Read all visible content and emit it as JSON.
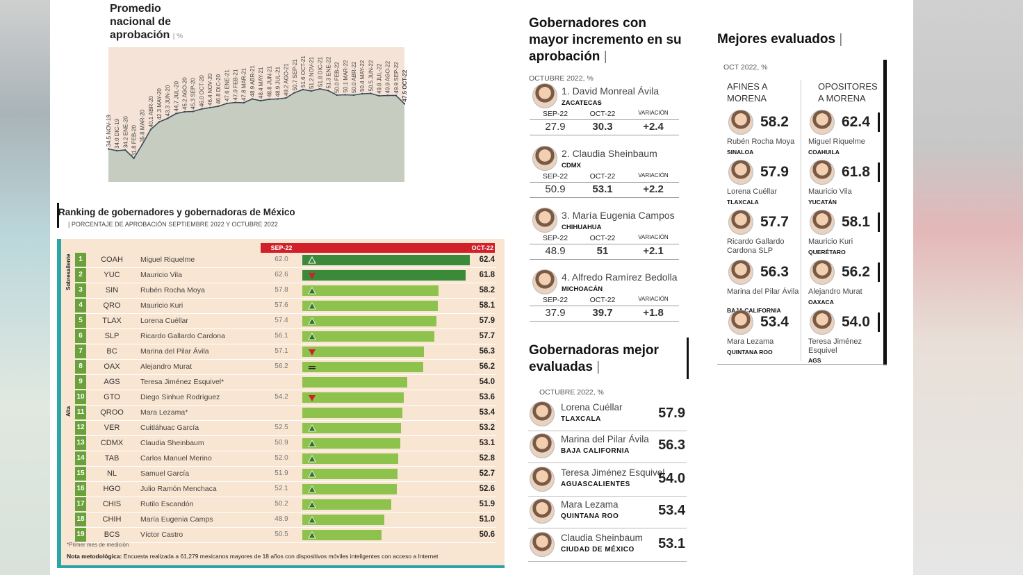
{
  "promedio": {
    "title_l1": "Promedio",
    "title_l2": "nacional de",
    "title_l3": "aprobación",
    "unit": "%"
  },
  "chart_data": [
    {
      "type": "area",
      "title": "Promedio nacional de aprobación",
      "unit": "%",
      "points": [
        {
          "label": "34.5 NOV-19",
          "v": 34.5
        },
        {
          "label": "34.0 DIC-19",
          "v": 34.0
        },
        {
          "label": "34.2 ENE-20",
          "v": 34.2
        },
        {
          "label": "31.8 FEB-20",
          "v": 31.8
        },
        {
          "label": "35.8 MAR-20",
          "v": 35.8
        },
        {
          "label": "40.1 ABR-20",
          "v": 40.1
        },
        {
          "label": "42.3 MAY-20",
          "v": 42.3
        },
        {
          "label": "43.3 JUN-20",
          "v": 43.3
        },
        {
          "label": "44.7 JUL-20",
          "v": 44.7
        },
        {
          "label": "45.2 AGO-20",
          "v": 45.2
        },
        {
          "label": "45.3 SEP-20",
          "v": 45.3
        },
        {
          "label": "46.0 OCT-20",
          "v": 46.0
        },
        {
          "label": "46.4 NOV-20",
          "v": 46.4
        },
        {
          "label": "46.8 DIC-20",
          "v": 46.8
        },
        {
          "label": "47.6 ENE-21",
          "v": 47.6
        },
        {
          "label": "47.9 FEB-21",
          "v": 47.9
        },
        {
          "label": "47.8 MAR-21",
          "v": 47.8
        },
        {
          "label": "48.9 ABR-21",
          "v": 48.9
        },
        {
          "label": "48.4 MAY-21",
          "v": 48.4
        },
        {
          "label": "48.8 JUN-21",
          "v": 48.8
        },
        {
          "label": "48.9 JUL-21",
          "v": 48.9
        },
        {
          "label": "49.2 AGO-21",
          "v": 49.2
        },
        {
          "label": "50.7 SEP-21",
          "v": 50.7
        },
        {
          "label": "51.6 OCT-21",
          "v": 51.6
        },
        {
          "label": "51.2 NOV-21",
          "v": 51.2
        },
        {
          "label": "51.8 DIC-21",
          "v": 51.8
        },
        {
          "label": "51.3 ENE-22",
          "v": 51.3
        },
        {
          "label": "50.0 FEB-22",
          "v": 50.0
        },
        {
          "label": "50.1 MAR-22",
          "v": 50.1
        },
        {
          "label": "50.0 ABR-22",
          "v": 50.0
        },
        {
          "label": "50.4 MAY-22",
          "v": 50.4
        },
        {
          "label": "50.5 JUN-22",
          "v": 50.5
        },
        {
          "label": "49.8 JUL-22",
          "v": 49.8
        },
        {
          "label": "49.9 AGO-22",
          "v": 49.9
        },
        {
          "label": "49.9 SEP-22",
          "v": 49.9
        },
        {
          "label": "47.5 OCT-22",
          "v": 47.5
        }
      ]
    },
    {
      "type": "bar",
      "title": "Ranking de gobernadores y gobernadoras de México",
      "subtitle": "PORCENTAJE DE APROBACIÓN SEPTIEMBRE 2022 Y OCTUBRE 2022",
      "col_sep": "SEP-22",
      "col_oct": "OCT-22",
      "group_top": "Sobresaliente",
      "group_bottom": "Alta",
      "rows": [
        {
          "rank": "1",
          "code": "COAH",
          "name": "Miguel Riquelme",
          "sep": "62.0",
          "oct": 62.4,
          "arrow": "up",
          "tier": "top"
        },
        {
          "rank": "2",
          "code": "YUC",
          "name": "Mauricio Vila",
          "sep": "62.6",
          "oct": 61.8,
          "arrow": "down",
          "tier": "top"
        },
        {
          "rank": "3",
          "code": "SIN",
          "name": "Rubén Rocha Moya",
          "sep": "57.8",
          "oct": 58.2,
          "arrow": "up",
          "tier": "alta"
        },
        {
          "rank": "4",
          "code": "QRO",
          "name": "Mauricio Kuri",
          "sep": "57.6",
          "oct": 58.1,
          "arrow": "up",
          "tier": "alta"
        },
        {
          "rank": "5",
          "code": "TLAX",
          "name": "Lorena Cuéllar",
          "sep": "57.4",
          "oct": 57.9,
          "arrow": "up",
          "tier": "alta"
        },
        {
          "rank": "6",
          "code": "SLP",
          "name": "Ricardo Gallardo Cardona",
          "sep": "56.1",
          "oct": 57.7,
          "arrow": "up",
          "tier": "alta"
        },
        {
          "rank": "7",
          "code": "BC",
          "name": "Marina del Pilar Ávila",
          "sep": "57.1",
          "oct": 56.3,
          "arrow": "down",
          "tier": "alta"
        },
        {
          "rank": "8",
          "code": "OAX",
          "name": "Alejandro Murat",
          "sep": "56.2",
          "oct": 56.2,
          "arrow": "equal",
          "tier": "alta"
        },
        {
          "rank": "9",
          "code": "AGS",
          "name": "Teresa Jiménez Esquivel*",
          "sep": "",
          "oct": 54.0,
          "arrow": "none",
          "tier": "alta"
        },
        {
          "rank": "10",
          "code": "GTO",
          "name": "Diego Sinhue Rodríguez",
          "sep": "54.2",
          "oct": 53.6,
          "arrow": "down",
          "tier": "alta"
        },
        {
          "rank": "11",
          "code": "QROO",
          "name": "Mara Lezama*",
          "sep": "",
          "oct": 53.4,
          "arrow": "none",
          "tier": "alta"
        },
        {
          "rank": "12",
          "code": "VER",
          "name": "Cuitláhuac García",
          "sep": "52.5",
          "oct": 53.2,
          "arrow": "up",
          "tier": "alta"
        },
        {
          "rank": "13",
          "code": "CDMX",
          "name": "Claudia Sheinbaum",
          "sep": "50.9",
          "oct": 53.1,
          "arrow": "up",
          "tier": "alta"
        },
        {
          "rank": "14",
          "code": "TAB",
          "name": "Carlos Manuel Merino",
          "sep": "52.0",
          "oct": 52.8,
          "arrow": "up",
          "tier": "alta"
        },
        {
          "rank": "15",
          "code": "NL",
          "name": "Samuel García",
          "sep": "51.9",
          "oct": 52.7,
          "arrow": "up",
          "tier": "alta"
        },
        {
          "rank": "16",
          "code": "HGO",
          "name": "Julio Ramón Menchaca",
          "sep": "52.1",
          "oct": 52.6,
          "arrow": "up",
          "tier": "alta"
        },
        {
          "rank": "17",
          "code": "CHIS",
          "name": "Rutilo Escandón",
          "sep": "50.2",
          "oct": 51.9,
          "arrow": "up",
          "tier": "alta"
        },
        {
          "rank": "18",
          "code": "CHIH",
          "name": "María Eugenia Camps",
          "sep": "48.9",
          "oct": 51.0,
          "arrow": "up",
          "tier": "alta"
        },
        {
          "rank": "19",
          "code": "BCS",
          "name": "Víctor Castro",
          "sep": "50.5",
          "oct": 50.6,
          "arrow": "up",
          "tier": "alta"
        }
      ],
      "colors": {
        "top": "#3a8a3a",
        "alta": "#8dc24c"
      }
    }
  ],
  "ranking_text": {
    "title": "Ranking de gobernadores y gobernadoras de México",
    "subtitle": "PORCENTAJE DE APROBACIÓN SEPTIEMBRE 2022 Y OCTUBRE 2022",
    "sep": "SEP-22",
    "oct": "OCT-22",
    "group_top": "Sobresaliente",
    "group_bottom": "Alta",
    "foot_note": "*Primer mes de medición",
    "method_label": "Nota metodológica:",
    "method_text": " Encuesta realizada a 61,279 mexicanos mayores de 18 años con dispositivos móviles inteligentes con acceso a Internet"
  },
  "incremento": {
    "title": "Gobernadores con mayor incremento en su aprobación",
    "subtitle": "OCTUBRE 2022, %",
    "col_sep": "SEP-22",
    "col_oct": "OCT-22",
    "col_var": "VARIACIÓN",
    "items": [
      {
        "name": "1. David Monreal Ávila",
        "state": "ZACATECAS",
        "sep": "27.9",
        "oct": "30.3",
        "var": "+2.4"
      },
      {
        "name": "2. Claudia Sheinbaum",
        "state": "CDMX",
        "sep": "50.9",
        "oct": "53.1",
        "var": "+2.2"
      },
      {
        "name": "3. María Eugenia Campos",
        "state": "CHIHUAHUA",
        "sep": "48.9",
        "oct": "51",
        "var": "+2.1"
      },
      {
        "name": "4. Alfredo Ramírez Bedolla",
        "state": "MICHOACÁN",
        "sep": "37.9",
        "oct": "39.7",
        "var": "+1.8"
      }
    ]
  },
  "gobernadoras": {
    "title": "Gobernadoras mejor evaluadas",
    "subtitle": "OCTUBRE 2022, %",
    "items": [
      {
        "name": "Lorena Cuéllar",
        "state": "TLAXCALA",
        "value": "57.9"
      },
      {
        "name": "Marina del Pilar Ávila",
        "state": "BAJA CALIFORNIA",
        "value": "56.3"
      },
      {
        "name": "Teresa Jiménez Esquivel",
        "state": "AGUASCALIENTES",
        "value": "54.0"
      },
      {
        "name": "Mara Lezama",
        "state": "QUINTANA ROO",
        "value": "53.4"
      },
      {
        "name": "Claudia Sheinbaum",
        "state": "CIUDAD DE MÉXICO",
        "value": "53.1"
      }
    ]
  },
  "mejores": {
    "title": "Mejores evaluados",
    "subtitle": "OCT 2022, %",
    "col_left_l1": "AFINES A",
    "col_left_l2": "MORENA",
    "col_right_l1": "OPOSITORES",
    "col_right_l2": "A MORENA",
    "left": [
      {
        "value": "58.2",
        "name": "Rubén Rocha Moya",
        "state": "SINALOA"
      },
      {
        "value": "57.9",
        "name": "Lorena Cuéllar",
        "state": "TLAXCALA"
      },
      {
        "value": "57.7",
        "name": "Ricardo Gallardo Cardona SLP",
        "state": ""
      },
      {
        "value": "56.3",
        "name": "Marina del Pilar Ávila",
        "state": "BAJA CALIFORNIA"
      },
      {
        "value": "53.4",
        "name": "Mara Lezama",
        "state": "QUINTANA ROO"
      }
    ],
    "right": [
      {
        "value": "62.4",
        "name": "Miguel Riquelme",
        "state": "COAHUILA"
      },
      {
        "value": "61.8",
        "name": "Mauricio Vila",
        "state": "YUCATÁN"
      },
      {
        "value": "58.1",
        "name": "Mauricio Kuri",
        "state": "QUERÉTARO"
      },
      {
        "value": "56.2",
        "name": "Alejandro Murat",
        "state": "OAXACA"
      },
      {
        "value": "54.0",
        "name": "Teresa Jiménez Esquivel",
        "state": "AGS"
      }
    ]
  }
}
